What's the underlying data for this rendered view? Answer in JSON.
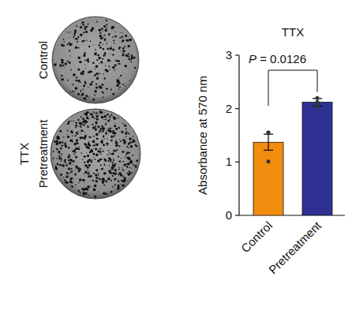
{
  "plates": {
    "labels": [
      "Control",
      "Pretreatment"
    ],
    "group_label": "TTX"
  },
  "chart_data": {
    "type": "bar",
    "title": "TTX",
    "y_label": "Absorbance at 570 nm",
    "categories": [
      "Control",
      "Pretreatment"
    ],
    "values": [
      1.37,
      2.12
    ],
    "errors": [
      0.15,
      0.07
    ],
    "points": [
      [
        1.55,
        1.55,
        1.01
      ],
      [
        2.2,
        2.12,
        2.04
      ]
    ],
    "colors": [
      "#f28c0f",
      "#2e3192"
    ],
    "ylim": [
      0,
      3
    ],
    "yticks": [
      0,
      1,
      2,
      3
    ],
    "annotation": "P = 0.0126"
  }
}
